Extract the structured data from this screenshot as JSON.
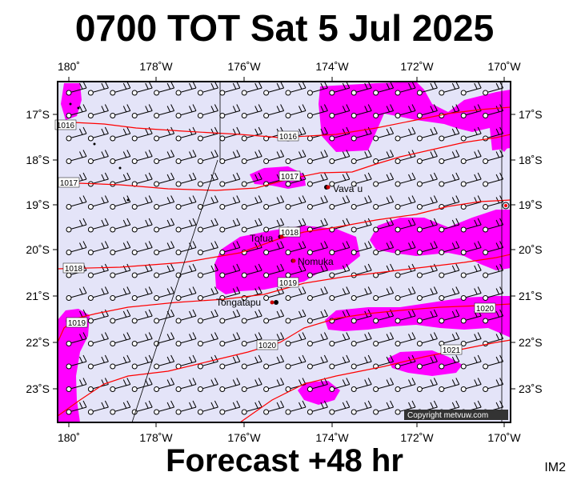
{
  "title": "0700 TOT Sat 5 Jul 2025",
  "footer": "Forecast +48 hr",
  "code": "IM2",
  "copyright": "Copyright metvuw.com",
  "lon_labels": [
    "180˚",
    "178˚W",
    "176˚W",
    "174˚W",
    "172˚W",
    "170˚W"
  ],
  "lat_labels": [
    "17˚S",
    "18˚S",
    "19˚S",
    "20˚S",
    "21˚S",
    "22˚S",
    "23˚S"
  ],
  "places": [
    {
      "name": "Vava`u"
    },
    {
      "name": "Tofua"
    },
    {
      "name": "Nomuka"
    },
    {
      "name": "Tongatapu"
    }
  ],
  "isobars": [
    "1016",
    "1016",
    "1017",
    "1017",
    "1018",
    "1018",
    "1019",
    "1019",
    "1020",
    "1020",
    "1021"
  ],
  "colors": {
    "background": "#e4e4f8",
    "rain": "#ff00ff",
    "isobar": "#ff0000",
    "wind": "#000000"
  },
  "wind_barb_icon": "wind-barb-icon"
}
